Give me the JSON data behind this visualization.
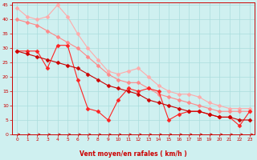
{
  "bg_color": "#cff0f0",
  "grid_color": "#aadddd",
  "line1_color": "#ffaaaa",
  "line2_color": "#ff8888",
  "line3_color": "#ff2222",
  "line4_color": "#cc0000",
  "xlabel": "Vent moyen/en rafales ( km/h )",
  "xlabel_color": "#cc0000",
  "tick_color": "#cc0000",
  "arrow_color": "#cc0000",
  "xlim": [
    -0.5,
    23.5
  ],
  "ylim": [
    0,
    46
  ],
  "yticks": [
    0,
    5,
    10,
    15,
    20,
    25,
    30,
    35,
    40,
    45
  ],
  "xticks": [
    0,
    1,
    2,
    3,
    4,
    5,
    6,
    7,
    8,
    9,
    10,
    11,
    12,
    13,
    14,
    15,
    16,
    17,
    18,
    19,
    20,
    21,
    22,
    23
  ],
  "line1_x": [
    0,
    1,
    2,
    3,
    4,
    5,
    6,
    7,
    8,
    9,
    10,
    11,
    12,
    13,
    14,
    15,
    16,
    17,
    18,
    19,
    20,
    21,
    22,
    23
  ],
  "line1_y": [
    44,
    41,
    40,
    41,
    45,
    41,
    35,
    30,
    26,
    22,
    21,
    22,
    23,
    20,
    17,
    15,
    14,
    14,
    13,
    11,
    10,
    9,
    9,
    9
  ],
  "line2_x": [
    0,
    1,
    2,
    3,
    4,
    5,
    6,
    7,
    8,
    9,
    10,
    11,
    12,
    13,
    14,
    15,
    16,
    17,
    18,
    19,
    20,
    21,
    22,
    23
  ],
  "line2_y": [
    40,
    39,
    38,
    36,
    34,
    32,
    30,
    27,
    24,
    21,
    19,
    18,
    18,
    16,
    14,
    13,
    12,
    11,
    10,
    9,
    8,
    8,
    8,
    8
  ],
  "line3_x": [
    0,
    1,
    2,
    3,
    4,
    5,
    6,
    7,
    8,
    9,
    10,
    11,
    12,
    13,
    14,
    15,
    16,
    17,
    18,
    19,
    20,
    21,
    22,
    23
  ],
  "line3_y": [
    29,
    29,
    29,
    23,
    31,
    31,
    19,
    9,
    8,
    5,
    12,
    16,
    15,
    16,
    15,
    5,
    7,
    8,
    8,
    7,
    6,
    6,
    3,
    8
  ],
  "line4_x": [
    0,
    1,
    2,
    3,
    4,
    5,
    6,
    7,
    8,
    9,
    10,
    11,
    12,
    13,
    14,
    15,
    16,
    17,
    18,
    19,
    20,
    21,
    22,
    23
  ],
  "line4_y": [
    29,
    28,
    27,
    26,
    25,
    24,
    23,
    21,
    19,
    17,
    16,
    15,
    14,
    12,
    11,
    10,
    9,
    8,
    8,
    7,
    6,
    6,
    5,
    5
  ]
}
